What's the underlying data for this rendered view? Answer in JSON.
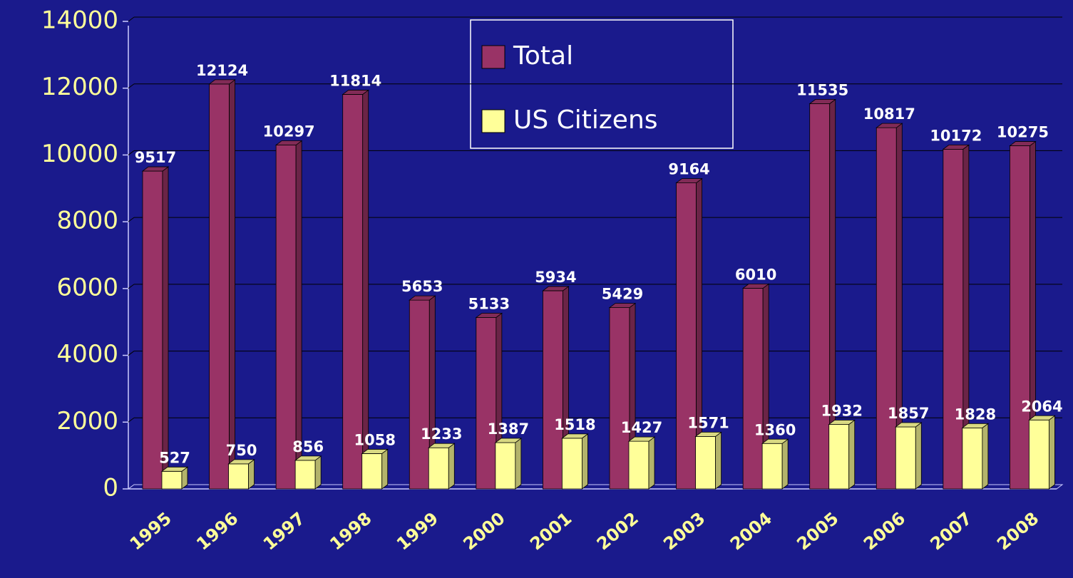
{
  "chart_data": {
    "type": "bar3d",
    "categories": [
      "1995",
      "1996",
      "1997",
      "1998",
      "1999",
      "2000",
      "2001",
      "2002",
      "2003",
      "2004",
      "2005",
      "2006",
      "2007",
      "2008"
    ],
    "series": [
      {
        "name": "Total",
        "color": "#993366",
        "values": [
          9517,
          12124,
          10297,
          11814,
          5653,
          5133,
          5934,
          5429,
          9164,
          6010,
          11535,
          10817,
          10172,
          10275
        ]
      },
      {
        "name": "US Citizens",
        "color": "#ffff99",
        "values": [
          527,
          750,
          856,
          1058,
          1233,
          1387,
          1518,
          1427,
          1571,
          1360,
          1932,
          1857,
          1828,
          2064
        ]
      }
    ],
    "ylim": [
      0,
      14000
    ],
    "yticks": [
      0,
      2000,
      4000,
      6000,
      8000,
      10000,
      12000,
      14000
    ],
    "grid": true
  }
}
